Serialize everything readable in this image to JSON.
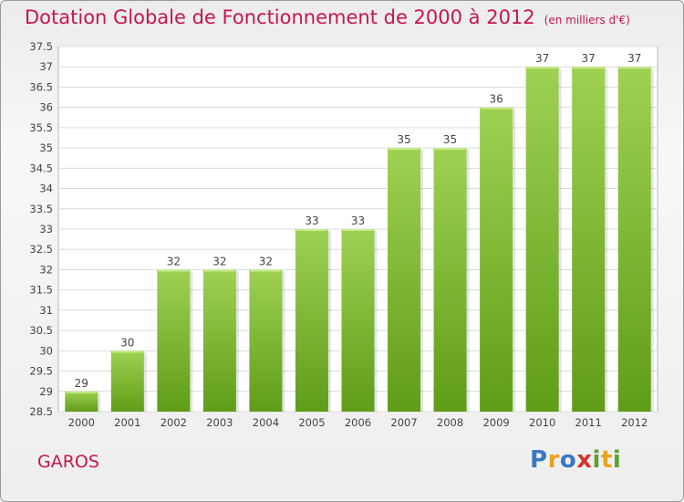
{
  "header": {
    "title": "Dotation Globale de Fonctionnement de 2000 à 2012",
    "unit": "(en milliers d'€)"
  },
  "commune": "GAROS",
  "logo": {
    "text": "Proxiti",
    "letters": [
      {
        "ch": "P",
        "color": "#3a78c3"
      },
      {
        "ch": "r",
        "color": "#e8a31e"
      },
      {
        "ch": "o",
        "color": "#3a78c3"
      },
      {
        "ch": "x",
        "color": "#d7352b"
      },
      {
        "ch": "i",
        "color": "#5aa032"
      },
      {
        "ch": "t",
        "color": "#e8a31e"
      },
      {
        "ch": "i",
        "color": "#5aa032"
      }
    ]
  },
  "chart_data": {
    "type": "bar",
    "title": "Dotation Globale de Fonctionnement de 2000 à 2012",
    "subtitle": "(en milliers d'€)",
    "categories": [
      "2000",
      "2001",
      "2002",
      "2003",
      "2004",
      "2005",
      "2006",
      "2007",
      "2008",
      "2009",
      "2010",
      "2011",
      "2012"
    ],
    "values": [
      29,
      30,
      32,
      32,
      32,
      33,
      33,
      35,
      35,
      36,
      37,
      37,
      37
    ],
    "ylim": [
      28.5,
      37.5
    ],
    "yticks": [
      "28.5",
      "29",
      "29.5",
      "30",
      "30.5",
      "31",
      "31.5",
      "32",
      "32.5",
      "33",
      "33.5",
      "34",
      "34.5",
      "35",
      "35.5",
      "36",
      "36.5",
      "37",
      "37.5"
    ],
    "grid": true,
    "bar_color": "#86c03c"
  }
}
